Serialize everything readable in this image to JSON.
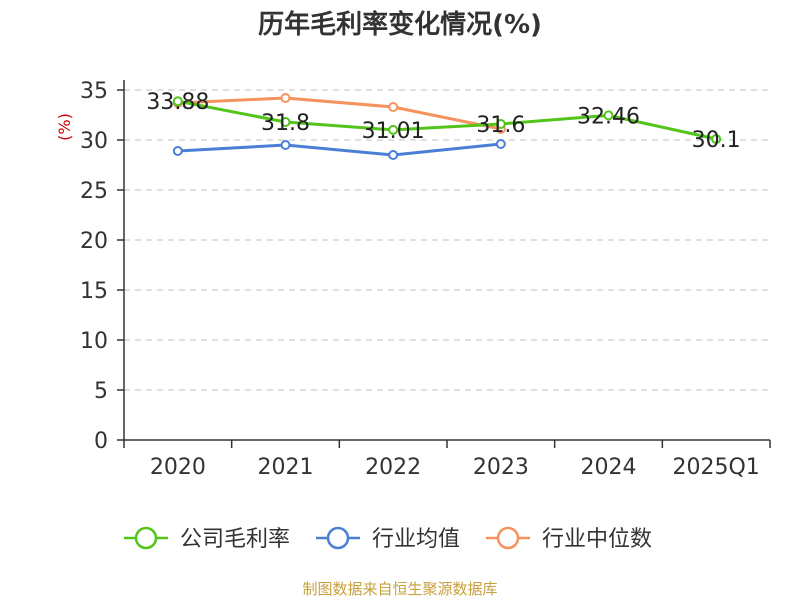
{
  "chart_data": {
    "type": "line",
    "title": "历年毛利率变化情况(%)",
    "ylabel": "(%)",
    "xlabel": "",
    "categories": [
      "2020",
      "2021",
      "2022",
      "2023",
      "2024",
      "2025Q1"
    ],
    "ylim": [
      0,
      35
    ],
    "yticks": [
      0,
      5,
      10,
      15,
      20,
      25,
      30,
      35
    ],
    "grid": true,
    "legend_position": "bottom",
    "series": [
      {
        "name": "公司毛利率",
        "color": "#52c41a",
        "values": [
          33.88,
          31.8,
          31.01,
          31.6,
          32.46,
          30.1
        ],
        "data_labels": [
          "33.88",
          "31.8",
          "31.01",
          "31.6",
          "32.46",
          "30.1"
        ]
      },
      {
        "name": "行业均值",
        "color": "#4a7fd6",
        "values": [
          28.9,
          29.5,
          28.5,
          29.6,
          null,
          null
        ]
      },
      {
        "name": "行业中位数",
        "color": "#f5925e",
        "values": [
          33.7,
          34.2,
          33.3,
          31.1,
          null,
          null
        ]
      }
    ]
  },
  "footer": {
    "source": "制图数据来自恒生聚源数据库",
    "source_color": "#c8a03c"
  },
  "axis_label_color": "#cc0000"
}
